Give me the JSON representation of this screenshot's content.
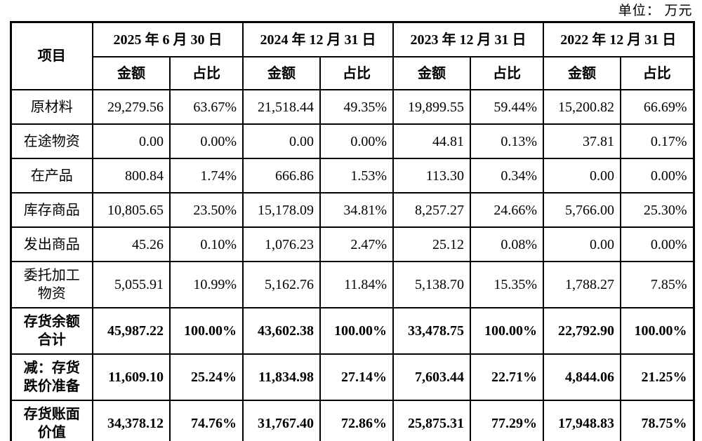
{
  "unit_label": "单位： 万元",
  "table": {
    "item_header": "项目",
    "col_groups": [
      {
        "date": "2025 年 6 月 30 日",
        "amount_label": "金额",
        "ratio_label": "占比"
      },
      {
        "date": "2024 年 12 月 31 日",
        "amount_label": "金额",
        "ratio_label": "占比"
      },
      {
        "date": "2023 年 12 月 31 日",
        "amount_label": "金额",
        "ratio_label": "占比"
      },
      {
        "date": "2022 年 12 月 31 日",
        "amount_label": "金额",
        "ratio_label": "占比"
      }
    ],
    "rows": [
      {
        "label": "原材料",
        "cells": [
          "29,279.56",
          "63.67%",
          "21,518.44",
          "49.35%",
          "19,899.55",
          "59.44%",
          "15,200.82",
          "66.69%"
        ]
      },
      {
        "label": "在途物资",
        "cells": [
          "0.00",
          "0.00%",
          "0.00",
          "0.00%",
          "44.81",
          "0.13%",
          "37.81",
          "0.17%"
        ]
      },
      {
        "label": "在产品",
        "cells": [
          "800.84",
          "1.74%",
          "666.86",
          "1.53%",
          "113.30",
          "0.34%",
          "0.00",
          "0.00%"
        ]
      },
      {
        "label": "库存商品",
        "cells": [
          "10,805.65",
          "23.50%",
          "15,178.09",
          "34.81%",
          "8,257.27",
          "24.66%",
          "5,766.00",
          "25.30%"
        ]
      },
      {
        "label": "发出商品",
        "cells": [
          "45.26",
          "0.10%",
          "1,076.23",
          "2.47%",
          "25.12",
          "0.08%",
          "0.00",
          "0.00%"
        ]
      },
      {
        "label": "委托加工\n物资",
        "cells": [
          "5,055.91",
          "10.99%",
          "5,162.76",
          "11.84%",
          "5,138.70",
          "15.35%",
          "1,788.27",
          "7.85%"
        ]
      },
      {
        "label": "存货余额\n合计",
        "cells": [
          "45,987.22",
          "100.00%",
          "43,602.38",
          "100.00%",
          "33,478.75",
          "100.00%",
          "22,792.90",
          "100.00%"
        ]
      },
      {
        "label": "减：存货\n跌价准备",
        "cells": [
          "11,609.10",
          "25.24%",
          "11,834.98",
          "27.14%",
          "7,603.44",
          "22.71%",
          "4,844.06",
          "21.25%"
        ]
      },
      {
        "label": "存货账面\n价值",
        "cells": [
          "34,378.12",
          "74.76%",
          "31,767.40",
          "72.86%",
          "25,875.31",
          "77.29%",
          "17,948.83",
          "78.75%"
        ]
      }
    ]
  }
}
